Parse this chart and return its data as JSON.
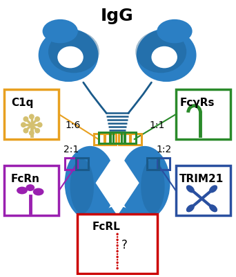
{
  "title": "IgG",
  "title_fontsize": 18,
  "title_fontweight": "bold",
  "bg_color": "#ffffff",
  "ab_color": "#2b7fc4",
  "ab_light": "#4a9fd4",
  "ab_dark": "#1a5a8a",
  "box_colors": {
    "C1q": "#e8a020",
    "FcyRs": "#2a8a2a",
    "FcRn": "#9a20b0",
    "TRIM21": "#2a50a0",
    "FcRL": "#cc0000"
  },
  "ratios": {
    "C1q": "1:6",
    "FcyRs": "1:1",
    "FcRn": "2:1",
    "TRIM21": "1:2"
  },
  "icon_colors": {
    "C1q": "#d4c070",
    "FcyRs": "#2a8a2a",
    "FcRn": "#9a20b0",
    "TRIM21": "#2a50a0",
    "FcRL": "#cc0000"
  },
  "figsize": [
    3.42,
    4.0
  ],
  "dpi": 100
}
